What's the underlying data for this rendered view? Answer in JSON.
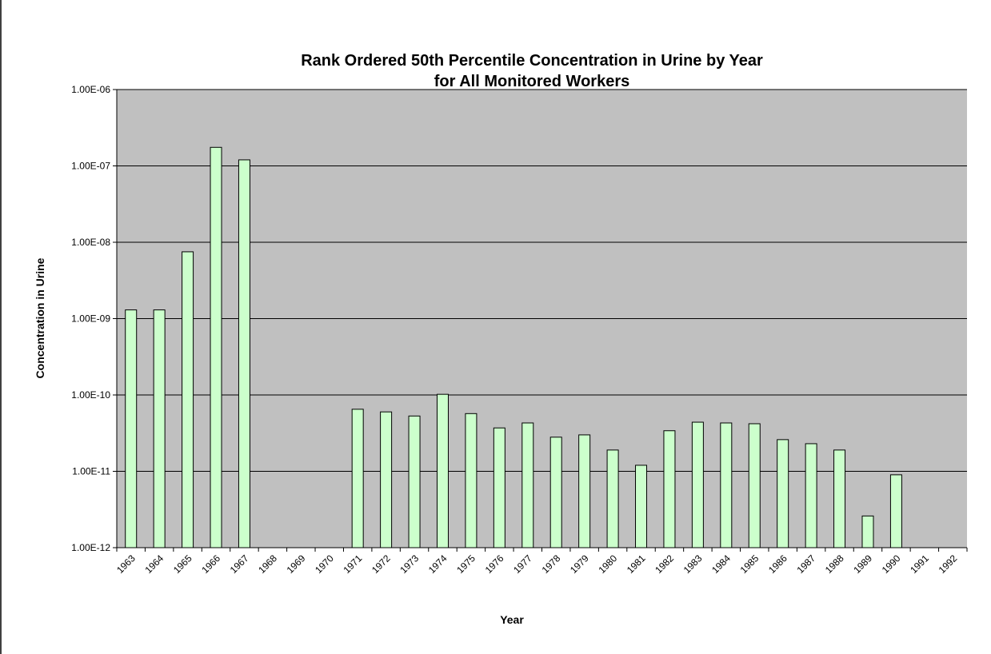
{
  "chart_data": {
    "type": "bar",
    "title_line1": "Rank Ordered 50th Percentile Concentration in Urine by Year",
    "title_line2": "for All  Monitored Workers",
    "xlabel": "Year",
    "ylabel": "Concentration in Urine",
    "y_scale": "log",
    "ylim": [
      1e-12,
      1e-06
    ],
    "y_ticks": [
      "1.00E-12",
      "1.00E-11",
      "1.00E-10",
      "1.00E-09",
      "1.00E-08",
      "1.00E-07",
      "1.00E-06"
    ],
    "grid": true,
    "legend": "none",
    "bar_color": "#ccffcc",
    "plot_background": "#c0c0c0",
    "categories": [
      "1963",
      "1964",
      "1965",
      "1966",
      "1967",
      "1968",
      "1969",
      "1970",
      "1971",
      "1972",
      "1973",
      "1974",
      "1975",
      "1976",
      "1977",
      "1978",
      "1979",
      "1980",
      "1981",
      "1982",
      "1983",
      "1984",
      "1985",
      "1986",
      "1987",
      "1988",
      "1989",
      "1990",
      "1991",
      "1992"
    ],
    "values": [
      1.3e-09,
      1.3e-09,
      7.5e-09,
      1.75e-07,
      1.2e-07,
      null,
      null,
      null,
      6.5e-11,
      6e-11,
      5.3e-11,
      1.02e-10,
      5.7e-11,
      3.7e-11,
      4.3e-11,
      2.8e-11,
      3e-11,
      1.9e-11,
      1.2e-11,
      3.4e-11,
      4.4e-11,
      4.3e-11,
      4.2e-11,
      2.6e-11,
      2.3e-11,
      1.9e-11,
      2.6e-12,
      9e-12,
      null,
      null
    ]
  }
}
